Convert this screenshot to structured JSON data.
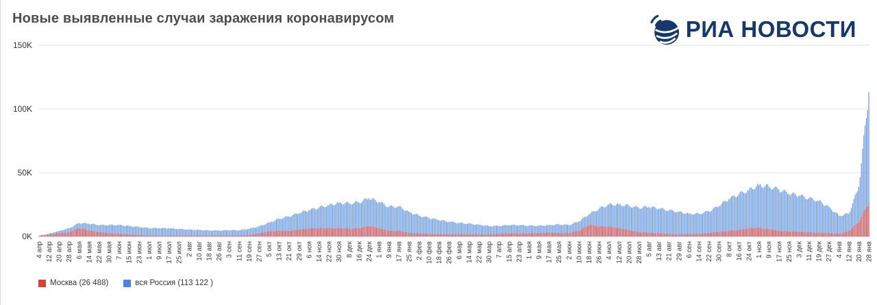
{
  "branding": {
    "logo_text": "РИА НОВОСТИ"
  },
  "chart_data": {
    "type": "bar",
    "title": "Новые выявленные случаи заражения коронавирусом",
    "xlabel": "",
    "ylabel": "",
    "ylim": [
      0,
      150000
    ],
    "y_ticks": [
      "0K",
      "50K",
      "100K",
      "150K"
    ],
    "y_tick_values": [
      0,
      50000,
      100000,
      150000
    ],
    "grid": true,
    "legend_position": "bottom-left",
    "tick_interval_days": 8,
    "x_tick_labels": [
      "4 апр",
      "12 апр",
      "20 апр",
      "28 апр",
      "6 мая",
      "14 мая",
      "22 мая",
      "30 мая",
      "7 июн",
      "15 июн",
      "23 июн",
      "1 июл",
      "9 июл",
      "17 июл",
      "25 июл",
      "2 авг",
      "10 авг",
      "18 авг",
      "26 авг",
      "3 сен",
      "11 сен",
      "19 сен",
      "27 сен",
      "5 окт",
      "13 окт",
      "21 окт",
      "29 окт",
      "6 ноя",
      "14 ноя",
      "22 ноя",
      "30 ноя",
      "8 дек",
      "16 дек",
      "24 дек",
      "1 янв",
      "9 янв",
      "17 янв",
      "25 янв",
      "2 фев",
      "10 фев",
      "18 фев",
      "26 фев",
      "6 мар",
      "14 мар",
      "22 мар",
      "30 мар",
      "7 апр",
      "15 апр",
      "23 апр",
      "1 мая",
      "9 мая",
      "17 мая",
      "25 мая",
      "2 июн",
      "10 июн",
      "18 июн",
      "26 июн",
      "4 июл",
      "12 июл",
      "20 июл",
      "28 июл",
      "5 авг",
      "13 авг",
      "21 авг",
      "29 авг",
      "6 сен",
      "14 сен",
      "22 сен",
      "30 сен",
      "8 окт",
      "16 окт",
      "24 окт",
      "1 ноя",
      "9 ноя",
      "17 ноя",
      "25 ноя",
      "3 дек",
      "11 дек",
      "19 дек",
      "27 дек",
      "4 янв",
      "12 янв",
      "20 янв",
      "28 янв"
    ],
    "series": [
      {
        "name": "Москва",
        "legend_label": "Москва (26 488)",
        "color": "#d8403a",
        "last_value": 26488,
        "values_at_ticks": [
          434,
          1306,
          2558,
          3075,
          6703,
          4712,
          3238,
          2595,
          2001,
          1611,
          1068,
          652,
          637,
          578,
          649,
          684,
          689,
          693,
          641,
          703,
          748,
          943,
          2308,
          3900,
          4501,
          4201,
          5268,
          6253,
          6428,
          6575,
          6524,
          6093,
          6427,
          8203,
          6566,
          4295,
          4320,
          2697,
          2296,
          2017,
          1785,
          1672,
          1702,
          1613,
          1585,
          1514,
          1998,
          2506,
          2306,
          2398,
          2604,
          2978,
          2705,
          2617,
          4501,
          9056,
          7916,
          7624,
          6590,
          5014,
          3319,
          2902,
          2529,
          1906,
          1628,
          1712,
          2006,
          2612,
          3591,
          4410,
          4998,
          6405,
          6827,
          5604,
          4391,
          3788,
          3672,
          3187,
          2904,
          2598,
          2088,
          4124,
          11486,
          26488
        ]
      },
      {
        "name": "вся Россия",
        "legend_label": "вся Россия (113 122 )",
        "color": "#4a84e0",
        "last_value": 113122,
        "values_at_ticks": [
          582,
          2186,
          4268,
          6411,
          10559,
          9974,
          8894,
          8952,
          8984,
          8246,
          7425,
          6556,
          6509,
          6406,
          5871,
          5427,
          5118,
          4748,
          4676,
          4893,
          4828,
          6065,
          7867,
          10888,
          13868,
          15700,
          18283,
          20582,
          22702,
          24581,
          26338,
          26097,
          26650,
          29935,
          27039,
          23309,
          23586,
          19290,
          16474,
          14494,
          12828,
          11534,
          10595,
          10083,
          9195,
          8162,
          8271,
          8944,
          8840,
          8440,
          8419,
          8903,
          9500,
          8933,
          11699,
          17262,
          21665,
          25142,
          25140,
          24071,
          22420,
          23120,
          21932,
          20564,
          19286,
          17856,
          17837,
          19706,
          23888,
          29362,
          33208,
          36446,
          40402,
          39160,
          36818,
          33558,
          32136,
          29929,
          27967,
          23210,
          16343,
          17946,
          38850,
          113122
        ]
      }
    ]
  }
}
